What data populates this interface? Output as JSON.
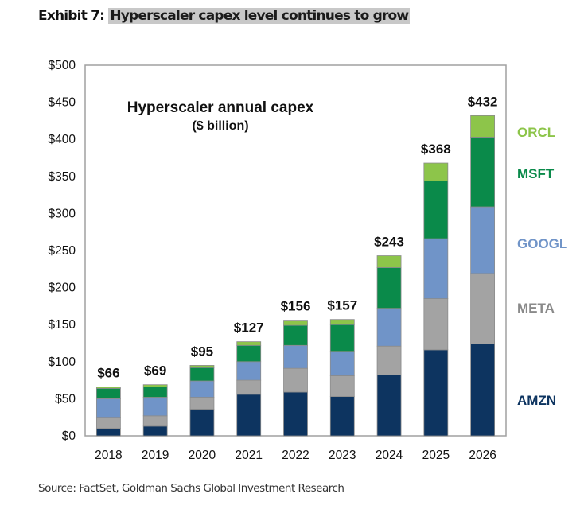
{
  "header": {
    "exhibit_label": "Exhibit 7:",
    "exhibit_title": "Hyperscaler capex level continues to grow"
  },
  "source": "Source: FactSet, Goldman Sachs Global Investment Research",
  "chart_data": {
    "type": "bar",
    "stacked": true,
    "title": "Hyperscaler annual capex",
    "subtitle": "($ billion)",
    "xlabel": "",
    "ylabel": "",
    "ylim": [
      0,
      500
    ],
    "yticks": [
      0,
      50,
      100,
      150,
      200,
      250,
      300,
      350,
      400,
      450,
      500
    ],
    "ytick_labels": [
      "$0",
      "$50",
      "$100",
      "$150",
      "$200",
      "$250",
      "$300",
      "$350",
      "$400",
      "$450",
      "$500"
    ],
    "grid": false,
    "legend_position": "right",
    "categories": [
      "2018",
      "2019",
      "2020",
      "2021",
      "2022",
      "2023",
      "2024",
      "2025",
      "2026"
    ],
    "series": [
      {
        "name": "AMZN",
        "color": "#0d3460",
        "values": [
          10,
          13,
          36,
          56,
          59,
          53,
          82,
          116,
          124
        ]
      },
      {
        "name": "META",
        "color": "#a3a3a3",
        "values": [
          15,
          14,
          16,
          19,
          32,
          28,
          39,
          69,
          95
        ]
      },
      {
        "name": "GOOGL",
        "color": "#7094c8",
        "values": [
          25,
          25,
          22,
          25,
          31,
          33,
          51,
          81,
          90
        ]
      },
      {
        "name": "MSFT",
        "color": "#0a8a4a",
        "values": [
          14,
          14,
          18,
          22,
          27,
          36,
          55,
          78,
          94
        ]
      },
      {
        "name": "ORCL",
        "color": "#8dc54a",
        "values": [
          2,
          3,
          3,
          5,
          7,
          7,
          16,
          24,
          29
        ]
      }
    ],
    "totals": [
      66,
      69,
      95,
      127,
      156,
      157,
      243,
      368,
      432
    ],
    "total_labels": [
      "$66",
      "$69",
      "$95",
      "$127",
      "$156",
      "$157",
      "$243",
      "$368",
      "$432"
    ],
    "legend": [
      {
        "name": "ORCL",
        "color": "#8dc54a"
      },
      {
        "name": "MSFT",
        "color": "#0a8a4a"
      },
      {
        "name": "GOOGL",
        "color": "#7094c8"
      },
      {
        "name": "META",
        "color": "#8a8a8a"
      },
      {
        "name": "AMZN",
        "color": "#0d3460"
      }
    ]
  }
}
